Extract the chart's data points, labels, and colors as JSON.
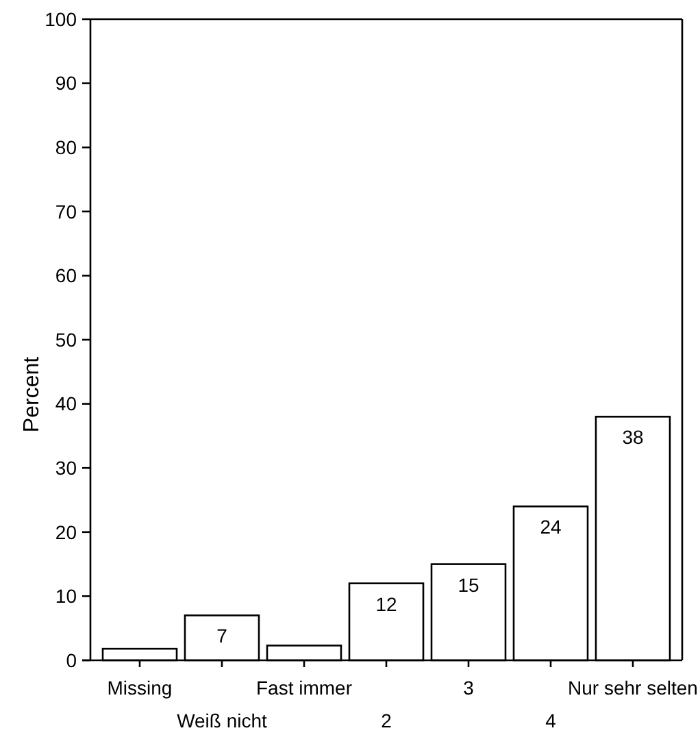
{
  "chart_data": {
    "type": "bar",
    "ylabel": "Percent",
    "categories": [
      "Missing",
      "Weiß nicht",
      "Fast immer",
      "2",
      "3",
      "4",
      "Nur sehr selten"
    ],
    "values": [
      1.8,
      7,
      2.3,
      12,
      15,
      24,
      38
    ],
    "value_labels": [
      null,
      "7",
      null,
      "12",
      "15",
      "24",
      "38"
    ],
    "color": "#ffffff",
    "ylim": [
      0,
      100
    ],
    "yticks": [
      0,
      10,
      20,
      30,
      40,
      50,
      60,
      70,
      80,
      90,
      100
    ]
  }
}
